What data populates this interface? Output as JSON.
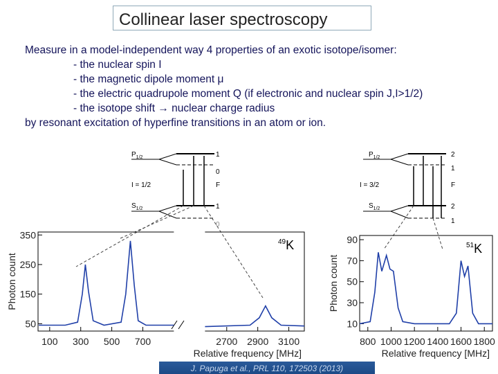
{
  "header": {
    "title": "Collinear laser spectroscopy"
  },
  "body": {
    "lines": [
      "Measure in a model-independent way 4 properties of an exotic isotope/isomer:",
      "- the nuclear spin I",
      "- the magnetic dipole moment μ",
      "- the electric quadrupole moment Q (if electronic and nuclear spin J,I>1/2)",
      "- the isotope shift → nuclear charge radius",
      "by resonant excitation of hyperfine transitions in an atom or ion."
    ]
  },
  "diagrams": [
    {
      "upper": {
        "main": "P",
        "sub": "1/2"
      },
      "upper_f": [
        "1",
        "0"
      ],
      "spin": "I = 1/2",
      "f_label": "F",
      "lower": {
        "main": "S",
        "sub": "1/2"
      },
      "lower_f": [
        "1",
        "0"
      ]
    },
    {
      "upper": {
        "main": "P",
        "sub": "1/2"
      },
      "upper_f": [
        "2",
        "1"
      ],
      "spin": "I = 3/2",
      "f_label": "F",
      "lower": {
        "main": "S",
        "sub": "1/2"
      },
      "lower_f": [
        "2",
        "1"
      ]
    }
  ],
  "chart_data": [
    {
      "type": "line",
      "isotope": {
        "mass": "49",
        "symbol": "K"
      },
      "y_label": "Photon count",
      "x_label": "Relative frequency [MHz]",
      "xlim": [
        25,
        3200
      ],
      "xbreak": [
        900,
        2560
      ],
      "ylim": [
        25,
        360
      ],
      "xticks": [
        100,
        300,
        500,
        700,
        2700,
        2900,
        3100
      ],
      "yticks": [
        50,
        150,
        250,
        350
      ],
      "x": [
        30,
        200,
        280,
        310,
        330,
        350,
        380,
        450,
        560,
        590,
        620,
        645,
        670,
        720,
        900,
        1500,
        2560,
        2850,
        2910,
        2950,
        2990,
        3050,
        3200
      ],
      "series": [
        {
          "color": "#1f3fa8",
          "values": [
            45,
            45,
            55,
            150,
            250,
            160,
            60,
            45,
            55,
            150,
            330,
            180,
            60,
            45,
            45,
            null,
            40,
            45,
            70,
            110,
            70,
            45,
            42
          ]
        }
      ]
    },
    {
      "type": "line",
      "isotope": {
        "mass": "51",
        "symbol": "K"
      },
      "y_label": "Photon count",
      "x_label": "Relative frequency [MHz]",
      "xlim": [
        730,
        1870
      ],
      "ylim": [
        3,
        94
      ],
      "xticks": [
        800,
        1000,
        1200,
        1400,
        1600,
        1800
      ],
      "yticks": [
        10,
        30,
        50,
        70,
        90
      ],
      "x": [
        730,
        820,
        860,
        890,
        920,
        960,
        990,
        1020,
        1060,
        1100,
        1200,
        1500,
        1560,
        1600,
        1630,
        1660,
        1700,
        1750,
        1870
      ],
      "series": [
        {
          "color": "#1f3fa8",
          "values": [
            10,
            12,
            40,
            78,
            60,
            75,
            62,
            60,
            25,
            12,
            10,
            10,
            20,
            70,
            55,
            65,
            20,
            10,
            10
          ]
        }
      ]
    }
  ],
  "citation": "J. Papuga et al., PRL 110, 172503 (2013)"
}
